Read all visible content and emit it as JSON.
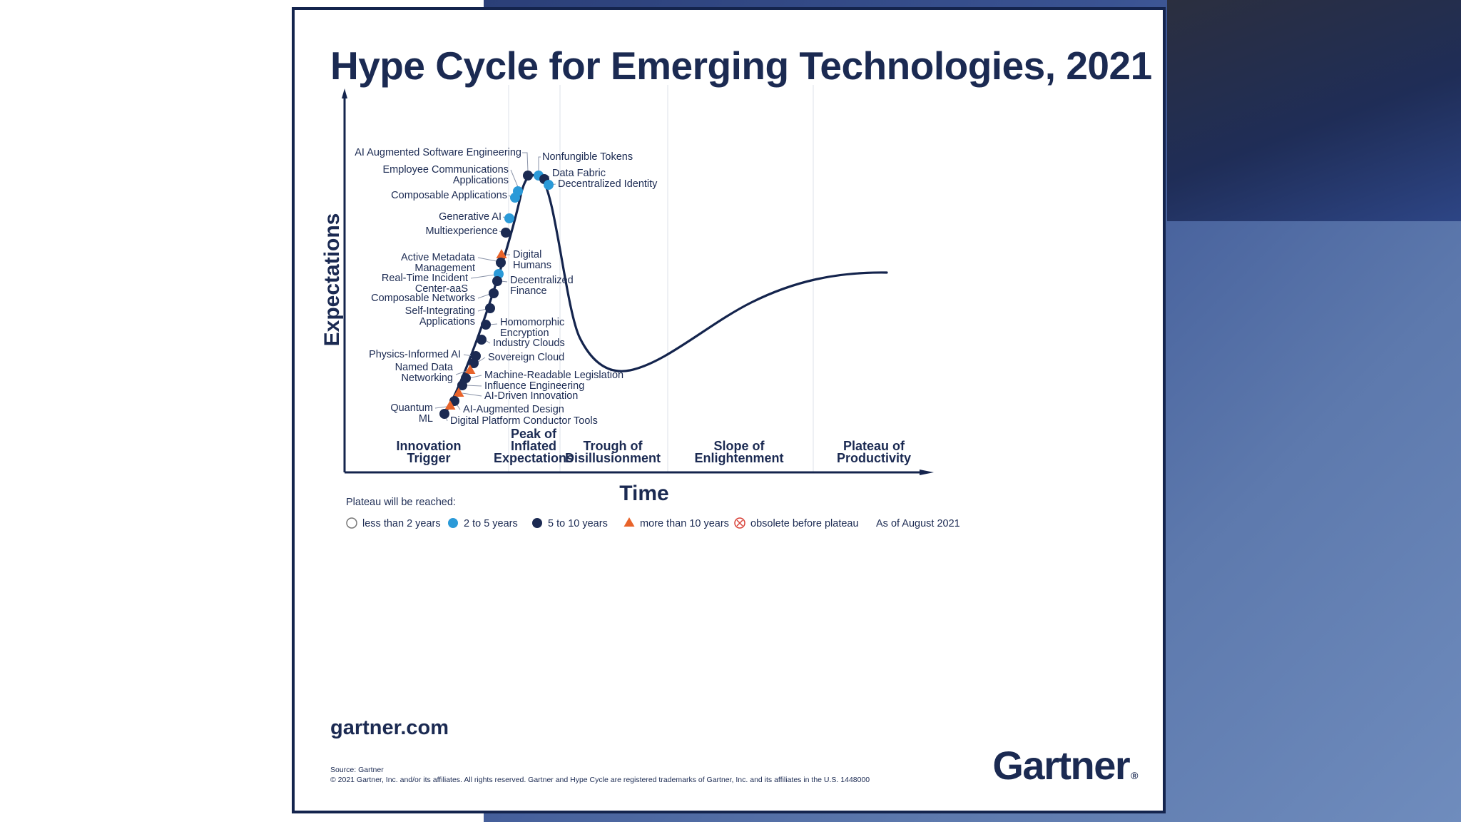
{
  "title": "Hype Cycle for Emerging Technologies, 2021",
  "site": "gartner.com",
  "source_line": "Source: Gartner",
  "copyright": "© 2021 Gartner, Inc. and/or its affiliates. All rights reserved. Gartner and Hype Cycle are registered trademarks of Gartner, Inc. and its affiliates in the U.S. 1448000",
  "logo_text": "Gartner",
  "colors": {
    "navy": "#1b2a52",
    "blue": "#2b9ad8",
    "orange": "#e8632a",
    "curve": "#14244d"
  },
  "chart_data": {
    "type": "scatter",
    "title": "Hype Cycle for Emerging Technologies, 2021",
    "xlabel": "Time",
    "ylabel": "Expectations",
    "phases": [
      [
        "Innovation",
        "Trigger"
      ],
      [
        "Peak of",
        "Inflated",
        "Expectations"
      ],
      [
        "Trough of",
        "Disillusionment"
      ],
      [
        "Slope of",
        "Enlightenment"
      ],
      [
        "Plateau of",
        "Productivity"
      ]
    ],
    "legend_title": "Plateau will be reached:",
    "legend": [
      {
        "key": "lt2",
        "label": "less than 2 years"
      },
      {
        "key": "2to5",
        "label": "2 to 5 years"
      },
      {
        "key": "5to10",
        "label": "5 to 10 years"
      },
      {
        "key": "gt10",
        "label": "more than 10 years"
      },
      {
        "key": "obsolete",
        "label": "obsolete before plateau"
      }
    ],
    "as_of": "As of August 2021",
    "technologies": [
      {
        "name": [
          "AI Augmented Software Engineering"
        ],
        "plateau": "5to10"
      },
      {
        "name": [
          "Nonfungible Tokens"
        ],
        "plateau": "2to5"
      },
      {
        "name": [
          "Employee Communications",
          "Applications"
        ],
        "plateau": "2to5"
      },
      {
        "name": [
          "Data Fabric"
        ],
        "plateau": "5to10"
      },
      {
        "name": [
          "Decentralized Identity"
        ],
        "plateau": "2to5"
      },
      {
        "name": [
          "Composable Applications"
        ],
        "plateau": "2to5"
      },
      {
        "name": [
          "Generative AI"
        ],
        "plateau": "2to5"
      },
      {
        "name": [
          "Multiexperience"
        ],
        "plateau": "5to10"
      },
      {
        "name": [
          "Digital",
          "Humans"
        ],
        "plateau": "gt10"
      },
      {
        "name": [
          "Active Metadata",
          "Management"
        ],
        "plateau": "5to10"
      },
      {
        "name": [
          "Real-Time Incident",
          "Center-aaS"
        ],
        "plateau": "2to5"
      },
      {
        "name": [
          "Decentralized",
          "Finance"
        ],
        "plateau": "5to10"
      },
      {
        "name": [
          "Composable Networks"
        ],
        "plateau": "5to10"
      },
      {
        "name": [
          "Self-Integrating",
          "Applications"
        ],
        "plateau": "5to10"
      },
      {
        "name": [
          "Homomorphic",
          "Encryption"
        ],
        "plateau": "5to10"
      },
      {
        "name": [
          "Industry Clouds"
        ],
        "plateau": "5to10"
      },
      {
        "name": [
          "Physics-Informed AI"
        ],
        "plateau": "5to10"
      },
      {
        "name": [
          "Sovereign Cloud"
        ],
        "plateau": "5to10"
      },
      {
        "name": [
          "Named Data",
          "Networking"
        ],
        "plateau": "gt10"
      },
      {
        "name": [
          "Machine-Readable Legislation"
        ],
        "plateau": "5to10"
      },
      {
        "name": [
          "Influence Engineering"
        ],
        "plateau": "5to10"
      },
      {
        "name": [
          "AI-Driven Innovation"
        ],
        "plateau": "gt10"
      },
      {
        "name": [
          "AI-Augmented Design"
        ],
        "plateau": "5to10"
      },
      {
        "name": [
          "Quantum",
          "ML"
        ],
        "plateau": "gt10"
      },
      {
        "name": [
          "Digital Platform Conductor Tools"
        ],
        "plateau": "5to10"
      }
    ]
  }
}
